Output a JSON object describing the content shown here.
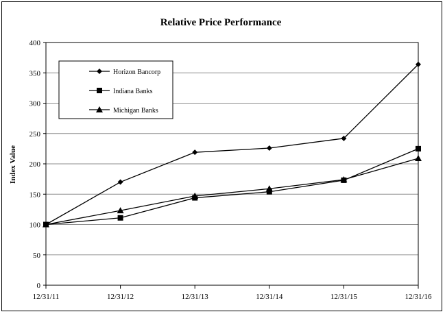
{
  "chart_data": {
    "type": "line",
    "title": "Relative Price Performance",
    "xlabel": "",
    "ylabel": "Index Value",
    "categories": [
      "12/31/11",
      "12/31/12",
      "12/31/13",
      "12/31/14",
      "12/31/15",
      "12/31/16"
    ],
    "ylim": [
      0,
      400
    ],
    "yticks": [
      0,
      50,
      100,
      150,
      200,
      250,
      300,
      350,
      400
    ],
    "grid": true,
    "legend_position": "top-left",
    "series": [
      {
        "name": "Horizon Bancorp",
        "marker": "diamond",
        "values": [
          100,
          170,
          219,
          226,
          242,
          364
        ]
      },
      {
        "name": "Indiana Banks",
        "marker": "square",
        "values": [
          100,
          111,
          144,
          154,
          173,
          225
        ]
      },
      {
        "name": "Michigan Banks",
        "marker": "triangle",
        "values": [
          100,
          123,
          147,
          159,
          174,
          209
        ]
      }
    ]
  }
}
